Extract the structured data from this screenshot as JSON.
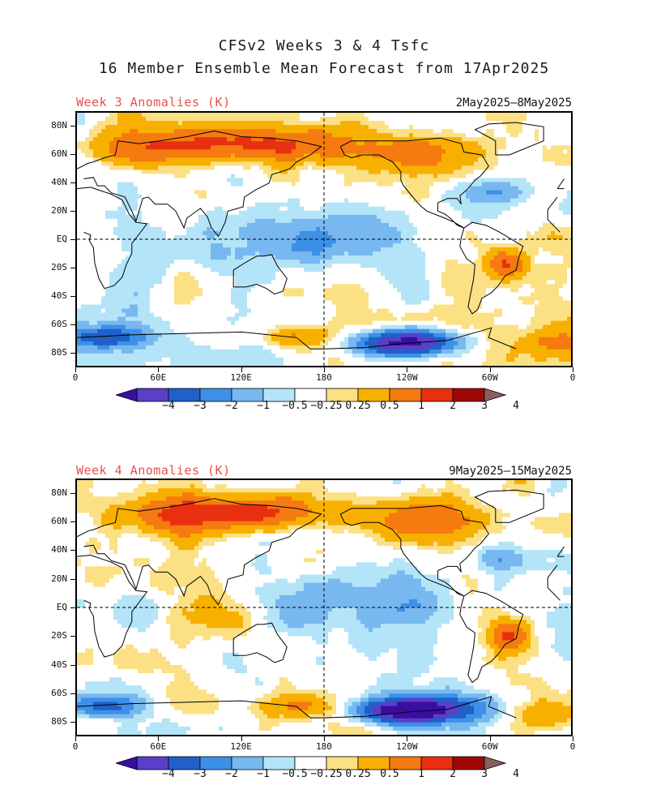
{
  "header": {
    "title_line1": "CFSv2 Weeks 3 & 4 Tsfc",
    "title_line2": "16 Member Ensemble Mean Forecast from 17Apr2025"
  },
  "panels": [
    {
      "label": "Week 3 Anomalies (K)",
      "dates": "2May2025–8May2025"
    },
    {
      "label": "Week 4 Anomalies (K)",
      "dates": "9May2025–15May2025"
    }
  ],
  "axes": {
    "lat_labels": [
      "80N",
      "60N",
      "40N",
      "20N",
      "EQ",
      "20S",
      "40S",
      "60S",
      "80S"
    ],
    "lon_labels": [
      "0",
      "60E",
      "120E",
      "180",
      "120W",
      "60W",
      "0"
    ]
  },
  "colorbar": {
    "labels": [
      "−4",
      "−3",
      "−2",
      "−1",
      "−0.5",
      "−0.25",
      "0.25",
      "0.5",
      "1",
      "2",
      "3",
      "4"
    ],
    "colors": [
      "#3a0fa0",
      "#5a3fc8",
      "#2060c8",
      "#3c90e8",
      "#78b8f0",
      "#b4e4f8",
      "#ffffff",
      "#fce084",
      "#f8b000",
      "#f57a10",
      "#e83010",
      "#a00808",
      "#8a6058"
    ]
  }
}
